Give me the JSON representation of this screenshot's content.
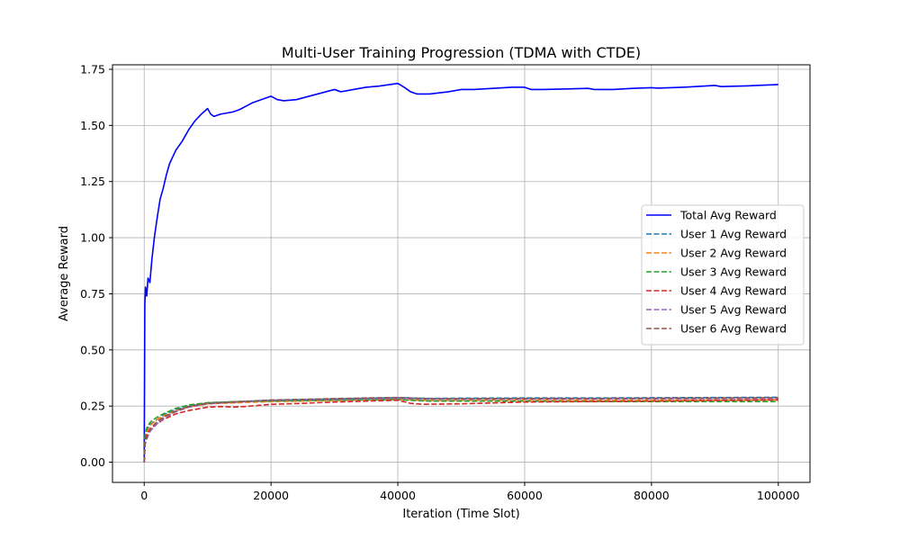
{
  "chart_data": {
    "type": "line",
    "title": "Multi-User Training Progression (TDMA with CTDE)",
    "xlabel": "Iteration (Time Slot)",
    "ylabel": "Average Reward",
    "xlim": [
      -5000,
      105000
    ],
    "ylim": [
      -0.09,
      1.77
    ],
    "xticks": [
      0,
      20000,
      40000,
      60000,
      80000,
      100000
    ],
    "xtick_labels": [
      "0",
      "20000",
      "40000",
      "60000",
      "80000",
      "100000"
    ],
    "yticks": [
      0.0,
      0.25,
      0.5,
      0.75,
      1.0,
      1.25,
      1.5,
      1.75
    ],
    "ytick_labels": [
      "0.00",
      "0.25",
      "0.50",
      "0.75",
      "1.00",
      "1.25",
      "1.50",
      "1.75"
    ],
    "grid": true,
    "legend_position": "center-right",
    "series": [
      {
        "name": "Total Avg Reward",
        "color": "#0000ff",
        "style": "solid",
        "points": [
          [
            0,
            0.0
          ],
          [
            100,
            0.7
          ],
          [
            200,
            0.78
          ],
          [
            400,
            0.74
          ],
          [
            600,
            0.82
          ],
          [
            900,
            0.8
          ],
          [
            1200,
            0.9
          ],
          [
            1600,
            1.0
          ],
          [
            2000,
            1.08
          ],
          [
            2500,
            1.17
          ],
          [
            3000,
            1.22
          ],
          [
            3500,
            1.28
          ],
          [
            4000,
            1.33
          ],
          [
            5000,
            1.39
          ],
          [
            6000,
            1.43
          ],
          [
            7000,
            1.48
          ],
          [
            8000,
            1.52
          ],
          [
            9000,
            1.55
          ],
          [
            10000,
            1.575
          ],
          [
            10500,
            1.55
          ],
          [
            11000,
            1.54
          ],
          [
            12000,
            1.55
          ],
          [
            13000,
            1.555
          ],
          [
            14000,
            1.56
          ],
          [
            15000,
            1.57
          ],
          [
            16000,
            1.585
          ],
          [
            17000,
            1.6
          ],
          [
            18000,
            1.61
          ],
          [
            19000,
            1.62
          ],
          [
            20000,
            1.63
          ],
          [
            21000,
            1.615
          ],
          [
            22000,
            1.61
          ],
          [
            24000,
            1.615
          ],
          [
            26000,
            1.63
          ],
          [
            28000,
            1.645
          ],
          [
            30000,
            1.66
          ],
          [
            31000,
            1.65
          ],
          [
            33000,
            1.66
          ],
          [
            35000,
            1.67
          ],
          [
            37000,
            1.675
          ],
          [
            40000,
            1.687
          ],
          [
            41000,
            1.67
          ],
          [
            42000,
            1.65
          ],
          [
            43000,
            1.64
          ],
          [
            45000,
            1.64
          ],
          [
            48000,
            1.65
          ],
          [
            50000,
            1.66
          ],
          [
            52000,
            1.66
          ],
          [
            55000,
            1.665
          ],
          [
            58000,
            1.67
          ],
          [
            60000,
            1.67
          ],
          [
            61000,
            1.66
          ],
          [
            63000,
            1.66
          ],
          [
            66000,
            1.662
          ],
          [
            70000,
            1.665
          ],
          [
            71000,
            1.66
          ],
          [
            74000,
            1.66
          ],
          [
            77000,
            1.665
          ],
          [
            80000,
            1.668
          ],
          [
            81000,
            1.666
          ],
          [
            85000,
            1.67
          ],
          [
            90000,
            1.678
          ],
          [
            91000,
            1.673
          ],
          [
            95000,
            1.676
          ],
          [
            100000,
            1.682
          ]
        ]
      },
      {
        "name": "User 1 Avg Reward",
        "color": "#1f77b4",
        "style": "dashed",
        "points": [
          [
            0,
            0.0
          ],
          [
            150,
            0.12
          ],
          [
            500,
            0.15
          ],
          [
            1000,
            0.17
          ],
          [
            2000,
            0.19
          ],
          [
            3000,
            0.21
          ],
          [
            5000,
            0.235
          ],
          [
            7000,
            0.25
          ],
          [
            10000,
            0.265
          ],
          [
            15000,
            0.27
          ],
          [
            20000,
            0.276
          ],
          [
            25000,
            0.279
          ],
          [
            30000,
            0.282
          ],
          [
            35000,
            0.285
          ],
          [
            40000,
            0.287
          ],
          [
            45000,
            0.284
          ],
          [
            50000,
            0.285
          ],
          [
            60000,
            0.286
          ],
          [
            70000,
            0.286
          ],
          [
            80000,
            0.287
          ],
          [
            90000,
            0.288
          ],
          [
            100000,
            0.289
          ]
        ]
      },
      {
        "name": "User 2 Avg Reward",
        "color": "#ff7f0e",
        "style": "dashed",
        "points": [
          [
            0,
            0.0
          ],
          [
            150,
            0.11
          ],
          [
            500,
            0.14
          ],
          [
            1000,
            0.165
          ],
          [
            2000,
            0.19
          ],
          [
            3000,
            0.205
          ],
          [
            5000,
            0.23
          ],
          [
            7000,
            0.245
          ],
          [
            10000,
            0.26
          ],
          [
            15000,
            0.265
          ],
          [
            20000,
            0.27
          ],
          [
            25000,
            0.272
          ],
          [
            30000,
            0.275
          ],
          [
            35000,
            0.278
          ],
          [
            40000,
            0.28
          ],
          [
            45000,
            0.275
          ],
          [
            50000,
            0.276
          ],
          [
            60000,
            0.277
          ],
          [
            70000,
            0.276
          ],
          [
            80000,
            0.276
          ],
          [
            90000,
            0.277
          ],
          [
            100000,
            0.278
          ]
        ]
      },
      {
        "name": "User 3 Avg Reward",
        "color": "#2ca02c",
        "style": "dashed",
        "points": [
          [
            0,
            0.0
          ],
          [
            150,
            0.13
          ],
          [
            500,
            0.16
          ],
          [
            1000,
            0.18
          ],
          [
            2000,
            0.2
          ],
          [
            3000,
            0.215
          ],
          [
            5000,
            0.24
          ],
          [
            7000,
            0.255
          ],
          [
            10000,
            0.265
          ],
          [
            15000,
            0.27
          ],
          [
            20000,
            0.272
          ],
          [
            25000,
            0.274
          ],
          [
            30000,
            0.276
          ],
          [
            35000,
            0.278
          ],
          [
            40000,
            0.278
          ],
          [
            45000,
            0.272
          ],
          [
            50000,
            0.272
          ],
          [
            60000,
            0.272
          ],
          [
            70000,
            0.27
          ],
          [
            80000,
            0.27
          ],
          [
            90000,
            0.27
          ],
          [
            100000,
            0.27
          ]
        ]
      },
      {
        "name": "User 4 Avg Reward",
        "color": "#d62728",
        "style": "dashed",
        "points": [
          [
            0,
            0.0
          ],
          [
            150,
            0.1
          ],
          [
            500,
            0.13
          ],
          [
            1000,
            0.15
          ],
          [
            2000,
            0.17
          ],
          [
            3000,
            0.19
          ],
          [
            5000,
            0.215
          ],
          [
            7000,
            0.23
          ],
          [
            10000,
            0.245
          ],
          [
            12000,
            0.248
          ],
          [
            14000,
            0.245
          ],
          [
            16000,
            0.248
          ],
          [
            20000,
            0.258
          ],
          [
            25000,
            0.262
          ],
          [
            30000,
            0.268
          ],
          [
            35000,
            0.272
          ],
          [
            40000,
            0.276
          ],
          [
            42000,
            0.262
          ],
          [
            44000,
            0.258
          ],
          [
            50000,
            0.26
          ],
          [
            55000,
            0.264
          ],
          [
            60000,
            0.268
          ],
          [
            70000,
            0.27
          ],
          [
            80000,
            0.272
          ],
          [
            90000,
            0.275
          ],
          [
            100000,
            0.277
          ]
        ]
      },
      {
        "name": "User 5 Avg Reward",
        "color": "#9467bd",
        "style": "dashed",
        "points": [
          [
            0,
            0.0
          ],
          [
            150,
            0.08
          ],
          [
            500,
            0.11
          ],
          [
            1000,
            0.14
          ],
          [
            2000,
            0.17
          ],
          [
            3000,
            0.195
          ],
          [
            5000,
            0.225
          ],
          [
            7000,
            0.245
          ],
          [
            10000,
            0.26
          ],
          [
            15000,
            0.268
          ],
          [
            20000,
            0.275
          ],
          [
            25000,
            0.278
          ],
          [
            30000,
            0.28
          ],
          [
            35000,
            0.282
          ],
          [
            40000,
            0.284
          ],
          [
            45000,
            0.28
          ],
          [
            50000,
            0.28
          ],
          [
            60000,
            0.281
          ],
          [
            70000,
            0.281
          ],
          [
            80000,
            0.282
          ],
          [
            90000,
            0.283
          ],
          [
            100000,
            0.284
          ]
        ]
      },
      {
        "name": "User 6 Avg Reward",
        "color": "#8c564b",
        "style": "dashed",
        "points": [
          [
            0,
            0.0
          ],
          [
            150,
            0.09
          ],
          [
            500,
            0.12
          ],
          [
            1000,
            0.15
          ],
          [
            2000,
            0.18
          ],
          [
            3000,
            0.2
          ],
          [
            5000,
            0.228
          ],
          [
            7000,
            0.248
          ],
          [
            10000,
            0.262
          ],
          [
            15000,
            0.27
          ],
          [
            20000,
            0.277
          ],
          [
            25000,
            0.28
          ],
          [
            30000,
            0.283
          ],
          [
            35000,
            0.286
          ],
          [
            40000,
            0.288
          ],
          [
            45000,
            0.283
          ],
          [
            50000,
            0.283
          ],
          [
            60000,
            0.284
          ],
          [
            70000,
            0.284
          ],
          [
            80000,
            0.285
          ],
          [
            90000,
            0.286
          ],
          [
            100000,
            0.287
          ]
        ]
      }
    ]
  }
}
